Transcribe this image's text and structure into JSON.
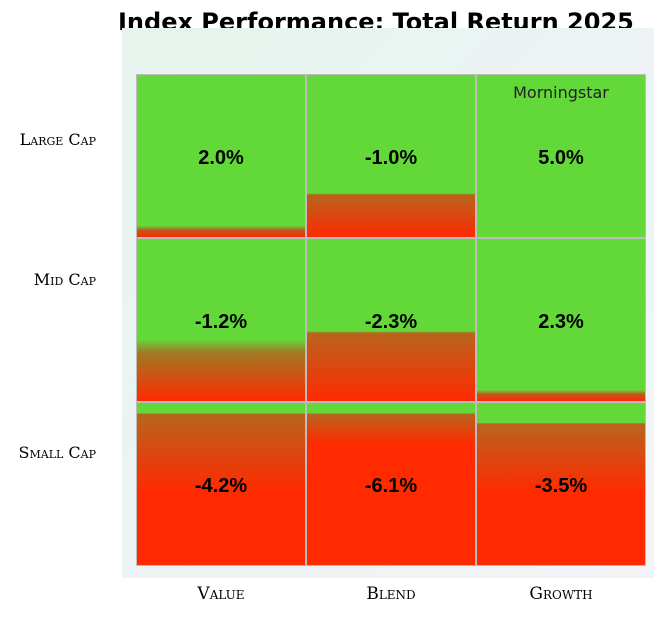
{
  "chart_data": {
    "type": "heatmap",
    "title": "Index Performance: Total Return 2025",
    "rows": [
      "Large Cap",
      "Mid Cap",
      "Small Cap"
    ],
    "columns": [
      "Value",
      "Blend",
      "Growth"
    ],
    "values": [
      [
        2.0,
        -1.0,
        5.0
      ],
      [
        -1.2,
        -2.3,
        2.3
      ],
      [
        -4.2,
        -6.1,
        -3.5
      ]
    ],
    "labels": [
      [
        "2.0%",
        "-1.0%",
        "5.0%"
      ],
      [
        "-1.2%",
        "-2.3%",
        "2.3%"
      ],
      [
        "-4.2%",
        "-6.1%",
        "-3.5%"
      ]
    ],
    "annotation": "Morningstar",
    "colors": {
      "positive": "#62d939",
      "negative": "#ff2a00"
    }
  }
}
